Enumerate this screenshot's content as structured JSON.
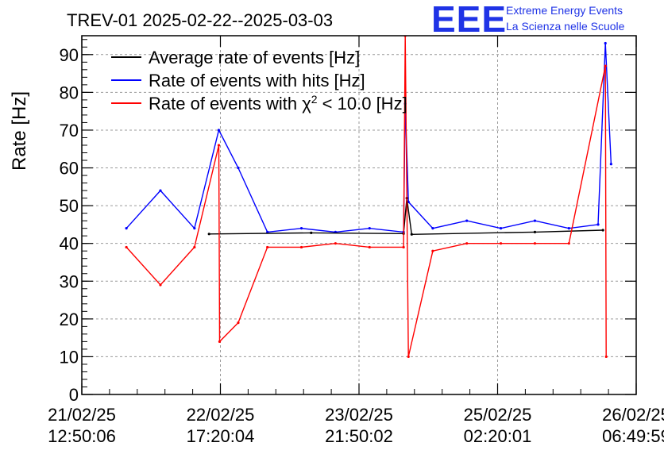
{
  "chart_data": {
    "type": "line",
    "title": "TREV-01 2025-02-22--2025-03-03",
    "brand": {
      "logo": "EEE",
      "line1": "Extreme Energy Events",
      "line2": "La Scienza nelle Scuole"
    },
    "ylabel": "Rate [Hz]",
    "xlabel": "",
    "ylim": [
      0,
      95
    ],
    "yticks": [
      0,
      10,
      20,
      30,
      40,
      50,
      60,
      70,
      80,
      90
    ],
    "xticks": [
      {
        "date": "21/02/25",
        "time": "12:50:06"
      },
      {
        "date": "22/02/25",
        "time": "17:20:04"
      },
      {
        "date": "23/02/25",
        "time": "21:50:02"
      },
      {
        "date": "25/02/25",
        "time": "02:20:01"
      },
      {
        "date": "26/02/25",
        "time": "06:49:59"
      }
    ],
    "grid": true,
    "legend_position": "top-left",
    "series": [
      {
        "name": "Average rate of events [Hz]",
        "legend_label": "Average rate of events [Hz]",
        "color": "#000000",
        "x": [
          "22/02/25 15:00",
          "23/02/25 12:00",
          "24/02/25 07:00",
          "24/02/25 07:40",
          "24/02/25 08:40",
          "25/02/25 10:00",
          "26/02/25 00:00"
        ],
        "y": [
          42.5,
          42.8,
          42.6,
          52.0,
          42.4,
          43.0,
          43.5
        ]
      },
      {
        "name": "Rate of events with hits [Hz]",
        "legend_label": "Rate of events with hits [Hz]",
        "color": "#0000ff",
        "x": [
          "21/02/25 22:00",
          "22/02/25 05:00",
          "22/02/25 12:00",
          "22/02/25 17:00",
          "22/02/25 21:00",
          "23/02/25 03:00",
          "23/02/25 10:00",
          "23/02/25 17:00",
          "24/02/25 00:00",
          "24/02/25 07:00",
          "24/02/25 07:20",
          "24/02/25 08:00",
          "24/02/25 13:00",
          "24/02/25 20:00",
          "25/02/25 03:00",
          "25/02/25 10:00",
          "25/02/25 17:00",
          "25/02/25 23:00",
          "26/02/25 00:30",
          "26/02/25 01:40"
        ],
        "y": [
          44,
          54,
          44,
          70,
          60,
          43,
          44,
          43,
          44,
          43,
          77,
          51,
          44,
          46,
          44,
          46,
          44,
          45,
          93,
          61
        ]
      },
      {
        "name": "Rate of events with χ² < 10.0 [Hz]",
        "legend_label": "Rate of events with χ",
        "legend_sup": "2",
        "legend_tail": " < 10.0 [Hz]",
        "color": "#ff0000",
        "x": [
          "21/02/25 22:00",
          "22/02/25 05:00",
          "22/02/25 12:00",
          "22/02/25 17:00",
          "22/02/25 17:10",
          "22/02/25 21:00",
          "23/02/25 03:00",
          "23/02/25 10:00",
          "23/02/25 17:00",
          "24/02/25 00:00",
          "24/02/25 07:00",
          "24/02/25 07:20",
          "24/02/25 08:00",
          "24/02/25 13:00",
          "24/02/25 20:00",
          "25/02/25 03:00",
          "25/02/25 10:00",
          "25/02/25 17:00",
          "26/02/25 00:30",
          "26/02/25 00:40"
        ],
        "y": [
          39,
          29,
          39,
          66,
          14,
          19,
          39,
          39,
          40,
          39,
          39,
          95,
          10,
          38,
          40,
          40,
          40,
          40,
          87,
          10
        ]
      }
    ]
  }
}
